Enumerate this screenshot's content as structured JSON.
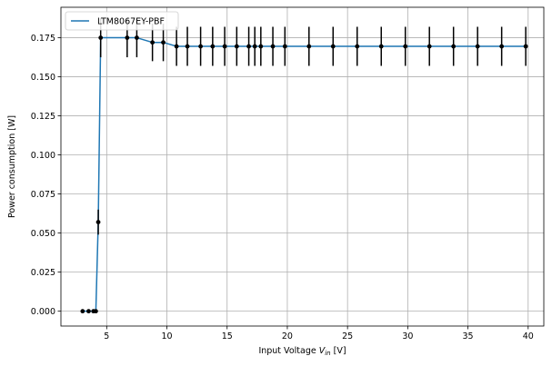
{
  "chart_data": {
    "type": "line",
    "xlabel_main": "Input Voltage ",
    "xlabel_var": "V",
    "xlabel_sub": "in",
    "xlabel_unit": " [V]",
    "ylabel": "Power consumption [W]",
    "xlim": [
      1.2,
      41.3
    ],
    "ylim": [
      -0.0095,
      0.1945
    ],
    "xticks": [
      5,
      10,
      15,
      20,
      25,
      30,
      35,
      40
    ],
    "xtick_labels": [
      "5",
      "10",
      "15",
      "20",
      "25",
      "30",
      "35",
      "40"
    ],
    "yticks": [
      0.0,
      0.025,
      0.05,
      0.075,
      0.1,
      0.125,
      0.15,
      0.175
    ],
    "ytick_labels": [
      "0.000",
      "0.025",
      "0.050",
      "0.075",
      "0.100",
      "0.125",
      "0.150",
      "0.175"
    ],
    "grid": true,
    "legend_position": "top-left",
    "series": [
      {
        "name": "LTM8067EY-PBF",
        "color": "#1f77b4",
        "marker_color": "#000000",
        "x": [
          3.0,
          3.5,
          3.9,
          4.1,
          4.3,
          4.5,
          6.7,
          7.5,
          8.8,
          9.7,
          10.8,
          11.7,
          12.8,
          13.8,
          14.8,
          15.8,
          16.8,
          17.3,
          17.8,
          18.8,
          19.8,
          21.8,
          23.8,
          25.8,
          27.8,
          29.8,
          31.8,
          33.8,
          35.8,
          37.8,
          39.8
        ],
        "y": [
          0.0,
          0.0,
          0.0,
          0.0,
          0.057,
          0.175,
          0.175,
          0.175,
          0.172,
          0.172,
          0.1695,
          0.1695,
          0.1695,
          0.1695,
          0.1695,
          0.1695,
          0.1695,
          0.1695,
          0.1695,
          0.1695,
          0.1695,
          0.1695,
          0.1695,
          0.1695,
          0.1695,
          0.1695,
          0.1695,
          0.1695,
          0.1695,
          0.1695,
          0.1695
        ],
        "yerr": [
          0.0,
          0.0,
          0.0,
          0.0,
          0.008,
          0.0125,
          0.0125,
          0.0125,
          0.012,
          0.012,
          0.0125,
          0.0125,
          0.0125,
          0.0125,
          0.0125,
          0.0125,
          0.0125,
          0.0125,
          0.0125,
          0.0125,
          0.0125,
          0.0125,
          0.0125,
          0.0125,
          0.0125,
          0.0125,
          0.0125,
          0.0125,
          0.0125,
          0.0125,
          0.0125
        ]
      }
    ]
  }
}
